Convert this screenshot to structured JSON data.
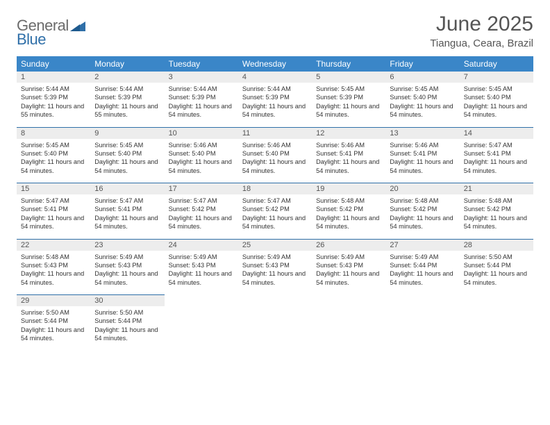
{
  "logo": {
    "general": "General",
    "blue": "Blue"
  },
  "header": {
    "month_title": "June 2025",
    "location": "Tiangua, Ceara, Brazil"
  },
  "colors": {
    "header_bg": "#3a86c8",
    "header_text": "#ffffff",
    "daynum_bg": "#ededed",
    "border": "#2f6fa8",
    "text": "#333333",
    "title_text": "#555555"
  },
  "day_headers": [
    "Sunday",
    "Monday",
    "Tuesday",
    "Wednesday",
    "Thursday",
    "Friday",
    "Saturday"
  ],
  "weeks": [
    [
      {
        "n": "1",
        "sr": "Sunrise: 5:44 AM",
        "ss": "Sunset: 5:39 PM",
        "dl": "Daylight: 11 hours and 55 minutes."
      },
      {
        "n": "2",
        "sr": "Sunrise: 5:44 AM",
        "ss": "Sunset: 5:39 PM",
        "dl": "Daylight: 11 hours and 55 minutes."
      },
      {
        "n": "3",
        "sr": "Sunrise: 5:44 AM",
        "ss": "Sunset: 5:39 PM",
        "dl": "Daylight: 11 hours and 54 minutes."
      },
      {
        "n": "4",
        "sr": "Sunrise: 5:44 AM",
        "ss": "Sunset: 5:39 PM",
        "dl": "Daylight: 11 hours and 54 minutes."
      },
      {
        "n": "5",
        "sr": "Sunrise: 5:45 AM",
        "ss": "Sunset: 5:39 PM",
        "dl": "Daylight: 11 hours and 54 minutes."
      },
      {
        "n": "6",
        "sr": "Sunrise: 5:45 AM",
        "ss": "Sunset: 5:40 PM",
        "dl": "Daylight: 11 hours and 54 minutes."
      },
      {
        "n": "7",
        "sr": "Sunrise: 5:45 AM",
        "ss": "Sunset: 5:40 PM",
        "dl": "Daylight: 11 hours and 54 minutes."
      }
    ],
    [
      {
        "n": "8",
        "sr": "Sunrise: 5:45 AM",
        "ss": "Sunset: 5:40 PM",
        "dl": "Daylight: 11 hours and 54 minutes."
      },
      {
        "n": "9",
        "sr": "Sunrise: 5:45 AM",
        "ss": "Sunset: 5:40 PM",
        "dl": "Daylight: 11 hours and 54 minutes."
      },
      {
        "n": "10",
        "sr": "Sunrise: 5:46 AM",
        "ss": "Sunset: 5:40 PM",
        "dl": "Daylight: 11 hours and 54 minutes."
      },
      {
        "n": "11",
        "sr": "Sunrise: 5:46 AM",
        "ss": "Sunset: 5:40 PM",
        "dl": "Daylight: 11 hours and 54 minutes."
      },
      {
        "n": "12",
        "sr": "Sunrise: 5:46 AM",
        "ss": "Sunset: 5:41 PM",
        "dl": "Daylight: 11 hours and 54 minutes."
      },
      {
        "n": "13",
        "sr": "Sunrise: 5:46 AM",
        "ss": "Sunset: 5:41 PM",
        "dl": "Daylight: 11 hours and 54 minutes."
      },
      {
        "n": "14",
        "sr": "Sunrise: 5:47 AM",
        "ss": "Sunset: 5:41 PM",
        "dl": "Daylight: 11 hours and 54 minutes."
      }
    ],
    [
      {
        "n": "15",
        "sr": "Sunrise: 5:47 AM",
        "ss": "Sunset: 5:41 PM",
        "dl": "Daylight: 11 hours and 54 minutes."
      },
      {
        "n": "16",
        "sr": "Sunrise: 5:47 AM",
        "ss": "Sunset: 5:41 PM",
        "dl": "Daylight: 11 hours and 54 minutes."
      },
      {
        "n": "17",
        "sr": "Sunrise: 5:47 AM",
        "ss": "Sunset: 5:42 PM",
        "dl": "Daylight: 11 hours and 54 minutes."
      },
      {
        "n": "18",
        "sr": "Sunrise: 5:47 AM",
        "ss": "Sunset: 5:42 PM",
        "dl": "Daylight: 11 hours and 54 minutes."
      },
      {
        "n": "19",
        "sr": "Sunrise: 5:48 AM",
        "ss": "Sunset: 5:42 PM",
        "dl": "Daylight: 11 hours and 54 minutes."
      },
      {
        "n": "20",
        "sr": "Sunrise: 5:48 AM",
        "ss": "Sunset: 5:42 PM",
        "dl": "Daylight: 11 hours and 54 minutes."
      },
      {
        "n": "21",
        "sr": "Sunrise: 5:48 AM",
        "ss": "Sunset: 5:42 PM",
        "dl": "Daylight: 11 hours and 54 minutes."
      }
    ],
    [
      {
        "n": "22",
        "sr": "Sunrise: 5:48 AM",
        "ss": "Sunset: 5:43 PM",
        "dl": "Daylight: 11 hours and 54 minutes."
      },
      {
        "n": "23",
        "sr": "Sunrise: 5:49 AM",
        "ss": "Sunset: 5:43 PM",
        "dl": "Daylight: 11 hours and 54 minutes."
      },
      {
        "n": "24",
        "sr": "Sunrise: 5:49 AM",
        "ss": "Sunset: 5:43 PM",
        "dl": "Daylight: 11 hours and 54 minutes."
      },
      {
        "n": "25",
        "sr": "Sunrise: 5:49 AM",
        "ss": "Sunset: 5:43 PM",
        "dl": "Daylight: 11 hours and 54 minutes."
      },
      {
        "n": "26",
        "sr": "Sunrise: 5:49 AM",
        "ss": "Sunset: 5:43 PM",
        "dl": "Daylight: 11 hours and 54 minutes."
      },
      {
        "n": "27",
        "sr": "Sunrise: 5:49 AM",
        "ss": "Sunset: 5:44 PM",
        "dl": "Daylight: 11 hours and 54 minutes."
      },
      {
        "n": "28",
        "sr": "Sunrise: 5:50 AM",
        "ss": "Sunset: 5:44 PM",
        "dl": "Daylight: 11 hours and 54 minutes."
      }
    ],
    [
      {
        "n": "29",
        "sr": "Sunrise: 5:50 AM",
        "ss": "Sunset: 5:44 PM",
        "dl": "Daylight: 11 hours and 54 minutes."
      },
      {
        "n": "30",
        "sr": "Sunrise: 5:50 AM",
        "ss": "Sunset: 5:44 PM",
        "dl": "Daylight: 11 hours and 54 minutes."
      },
      null,
      null,
      null,
      null,
      null
    ]
  ]
}
